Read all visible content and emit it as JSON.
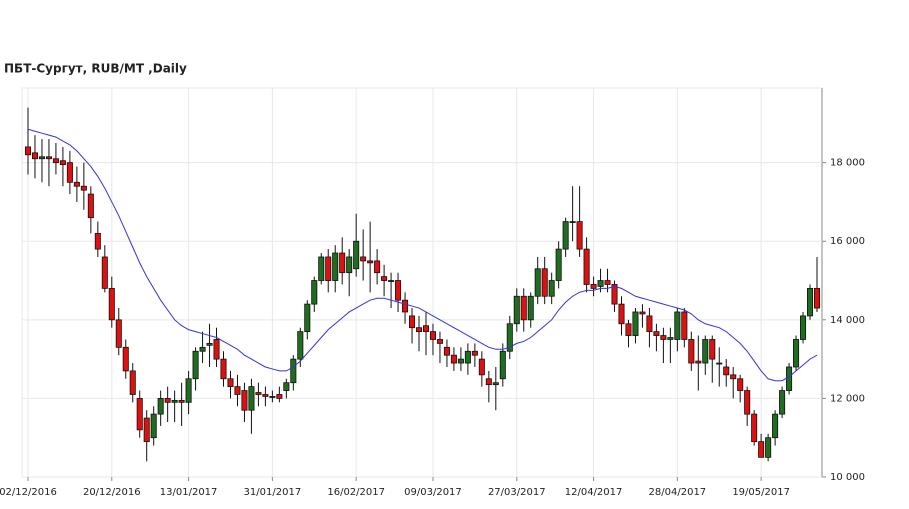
{
  "chart_data": {
    "type": "candlestick",
    "title": "ПБТ-Сургут,  RUB/MT ,Daily",
    "categories": [
      "02/12/2016",
      null,
      null,
      null,
      null,
      null,
      null,
      null,
      null,
      null,
      null,
      null,
      "20/12/2016",
      null,
      null,
      null,
      null,
      null,
      null,
      null,
      null,
      null,
      null,
      "13/01/2017",
      null,
      null,
      null,
      null,
      null,
      null,
      null,
      null,
      null,
      null,
      null,
      "31/01/2017",
      null,
      null,
      null,
      null,
      null,
      null,
      null,
      null,
      null,
      null,
      null,
      "16/02/2017",
      null,
      null,
      null,
      null,
      null,
      null,
      null,
      null,
      null,
      null,
      "09/03/2017",
      null,
      null,
      null,
      null,
      null,
      null,
      null,
      null,
      null,
      null,
      null,
      "27/03/2017",
      null,
      null,
      null,
      null,
      null,
      null,
      null,
      null,
      null,
      null,
      "12/04/2017",
      null,
      null,
      null,
      null,
      null,
      null,
      null,
      null,
      null,
      null,
      null,
      "28/04/2017",
      null,
      null,
      null,
      null,
      null,
      null,
      null,
      null,
      null,
      null,
      null,
      "19/05/2017",
      null,
      null,
      null,
      null,
      null,
      null,
      null,
      null
    ],
    "open": [
      18400,
      18250,
      18100,
      18150,
      18100,
      18050,
      18000,
      17500,
      17400,
      17200,
      16200,
      15600,
      14800,
      14000,
      13300,
      12700,
      12000,
      11500,
      11000,
      11600,
      12000,
      11900,
      11950,
      11900,
      12500,
      13200,
      13350,
      13500,
      13000,
      12500,
      12300,
      12200,
      11700,
      12150,
      12100,
      12050,
      12100,
      12200,
      12400,
      13000,
      13700,
      14400,
      15000,
      15600,
      15000,
      15700,
      15200,
      15300,
      15600,
      15500,
      15500,
      15100,
      15000,
      15000,
      14500,
      14100,
      13800,
      13850,
      13700,
      13500,
      13300,
      13100,
      12900,
      12900,
      13200,
      13000,
      12500,
      12350,
      12500,
      13200,
      13900,
      14600,
      14000,
      14600,
      15300,
      14600,
      15000,
      15800,
      16500,
      16500,
      15800,
      14900,
      14850,
      15000,
      14900,
      14400,
      13900,
      13600,
      14200,
      14100,
      13700,
      13600,
      13500,
      13500,
      14200,
      13500,
      12950,
      12900,
      13500,
      12900,
      12800,
      12600,
      12500,
      12200,
      11600,
      10900,
      10500,
      11000,
      11600,
      12200,
      12800,
      13500,
      14100,
      14800
    ],
    "high": [
      19400,
      18700,
      18600,
      18600,
      18500,
      18400,
      18300,
      17900,
      18000,
      17400,
      16500,
      15900,
      15100,
      14300,
      13500,
      12900,
      12200,
      11700,
      11800,
      12200,
      12300,
      12200,
      12400,
      12700,
      13300,
      13700,
      13900,
      13800,
      13200,
      12700,
      12600,
      12400,
      12500,
      12400,
      12300,
      12200,
      12300,
      12500,
      13100,
      13800,
      14500,
      15100,
      15700,
      15800,
      15900,
      16100,
      15800,
      16700,
      16300,
      16500,
      15800,
      15400,
      15200,
      15200,
      14700,
      14300,
      14100,
      14200,
      13900,
      13700,
      13500,
      13300,
      13300,
      13400,
      13400,
      13200,
      12700,
      12800,
      13400,
      14100,
      14800,
      14800,
      14700,
      15600,
      15600,
      15200,
      16000,
      16600,
      17400,
      17400,
      16100,
      15100,
      15300,
      15300,
      15000,
      14600,
      14000,
      14300,
      14400,
      14300,
      13900,
      13800,
      13800,
      14300,
      14300,
      13700,
      13600,
      13600,
      13600,
      13300,
      13000,
      12800,
      12600,
      12300,
      11700,
      11100,
      11100,
      11700,
      12300,
      12900,
      13600,
      14200,
      14900,
      15600
    ],
    "low": [
      17700,
      17600,
      17500,
      17400,
      17700,
      17400,
      17200,
      17000,
      16800,
      16200,
      15600,
      14700,
      13800,
      13100,
      12500,
      11900,
      11000,
      10400,
      10800,
      11300,
      11400,
      11400,
      11300,
      11600,
      12200,
      12900,
      12800,
      12800,
      12300,
      12000,
      11800,
      11400,
      11100,
      11800,
      11800,
      11900,
      11900,
      12000,
      12200,
      12800,
      13500,
      14200,
      14900,
      14700,
      14700,
      14900,
      14600,
      15100,
      15000,
      14700,
      14900,
      14600,
      14300,
      14200,
      13900,
      13400,
      13200,
      13100,
      13100,
      12900,
      12800,
      12700,
      12700,
      12600,
      12800,
      12300,
      11900,
      11700,
      12300,
      13000,
      13700,
      13700,
      13800,
      14400,
      14400,
      14400,
      14800,
      15600,
      16000,
      15600,
      14700,
      14600,
      14700,
      14700,
      14200,
      13600,
      13300,
      13400,
      13800,
      13300,
      13200,
      12900,
      12900,
      13200,
      13300,
      12700,
      12200,
      12600,
      12400,
      12300,
      12300,
      12000,
      11900,
      11300,
      10800,
      10500,
      10400,
      10800,
      11500,
      12100,
      12700,
      13400,
      14000,
      14200
    ],
    "close": [
      18200,
      18100,
      18150,
      18100,
      18000,
      17950,
      17500,
      17400,
      17300,
      16600,
      15800,
      14800,
      14000,
      13300,
      12700,
      12100,
      11200,
      10900,
      11600,
      12000,
      11900,
      11950,
      11900,
      12500,
      13200,
      13300,
      13400,
      13000,
      12500,
      12300,
      12100,
      11700,
      12300,
      12100,
      12050,
      12050,
      12000,
      12400,
      13000,
      13700,
      14400,
      15000,
      15600,
      15000,
      15700,
      15200,
      15600,
      16000,
      15500,
      15450,
      15200,
      15000,
      15000,
      14500,
      14200,
      13800,
      13700,
      13700,
      13500,
      13400,
      13100,
      12900,
      13000,
      13200,
      13100,
      12600,
      12350,
      12400,
      13200,
      13900,
      14600,
      14000,
      14600,
      15300,
      14600,
      15000,
      15800,
      16500,
      16500,
      15800,
      14900,
      14800,
      15000,
      14900,
      14400,
      13900,
      13600,
      14200,
      14150,
      13700,
      13600,
      13500,
      13550,
      14200,
      13500,
      12900,
      12900,
      13500,
      13000,
      12900,
      12600,
      12500,
      12200,
      11600,
      10900,
      10500,
      11000,
      11600,
      12200,
      12800,
      13500,
      14100,
      14800,
      14300
    ],
    "up_color": "#1f6e1f",
    "down_color": "#e01010",
    "moving_average": {
      "color": "#3333dd",
      "values": [
        18850,
        18800,
        18750,
        18700,
        18650,
        18550,
        18450,
        18300,
        18100,
        17900,
        17650,
        17350,
        17000,
        16650,
        16250,
        15850,
        15450,
        15100,
        14800,
        14500,
        14250,
        14000,
        13850,
        13750,
        13700,
        13650,
        13600,
        13550,
        13450,
        13350,
        13250,
        13100,
        13000,
        12900,
        12800,
        12750,
        12700,
        12700,
        12800,
        12950,
        13150,
        13350,
        13550,
        13750,
        13900,
        14050,
        14200,
        14300,
        14400,
        14500,
        14550,
        14550,
        14500,
        14450,
        14400,
        14350,
        14300,
        14200,
        14100,
        14000,
        13900,
        13800,
        13700,
        13600,
        13500,
        13400,
        13300,
        13250,
        13250,
        13300,
        13400,
        13450,
        13550,
        13700,
        13850,
        14000,
        14250,
        14450,
        14600,
        14700,
        14750,
        14750,
        14800,
        14800,
        14850,
        14800,
        14700,
        14600,
        14550,
        14500,
        14450,
        14400,
        14350,
        14300,
        14250,
        14150,
        14000,
        13900,
        13850,
        13800,
        13700,
        13550,
        13400,
        13200,
        12950,
        12700,
        12500,
        12450,
        12450,
        12550,
        12700,
        12850,
        13000,
        13100
      ]
    },
    "ylim": [
      10000,
      19900
    ],
    "yticks": [
      {
        "value": 10000,
        "label": "10 000"
      },
      {
        "value": 12000,
        "label": "12 000"
      },
      {
        "value": 14000,
        "label": "14 000"
      },
      {
        "value": 16000,
        "label": "16 000"
      },
      {
        "value": 18000,
        "label": "18 000"
      }
    ],
    "grid": true
  }
}
